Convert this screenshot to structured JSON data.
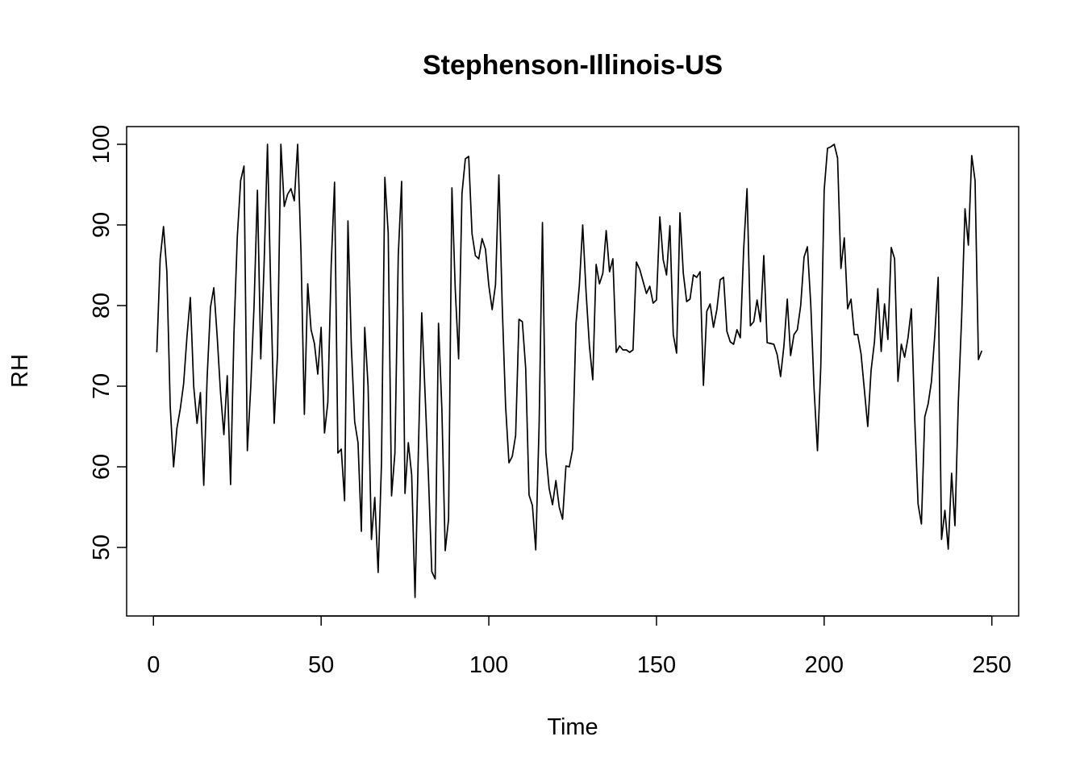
{
  "chart_data": {
    "type": "line",
    "title": "Stephenson-Illinois-US",
    "xlabel": "Time",
    "ylabel": "RH",
    "xlim": [
      -8,
      258
    ],
    "ylim": [
      41.5,
      102.2
    ],
    "x_ticks": [
      0,
      50,
      100,
      150,
      200,
      250
    ],
    "y_ticks": [
      50,
      60,
      70,
      80,
      90,
      100
    ],
    "grid": false,
    "legend": "none",
    "line_color": "#000000",
    "series": [
      {
        "x_start": 1,
        "values": [
          74.2,
          85.8,
          89.8,
          84.2,
          67.5,
          60.0,
          64.8,
          67.2,
          70.3,
          76.2,
          81.0,
          70.0,
          65.4,
          69.2,
          57.7,
          71.0,
          79.8,
          82.2,
          76.2,
          69.2,
          64.0,
          71.3,
          57.8,
          76.5,
          88.5,
          95.5,
          97.3,
          62.0,
          69.8,
          80.0,
          94.3,
          73.4,
          85.2,
          100.0,
          81.5,
          65.4,
          74.0,
          100.0,
          92.3,
          93.8,
          94.5,
          93.0,
          100.0,
          86.5,
          66.5,
          82.7,
          77.0,
          75.3,
          71.5,
          77.3,
          64.2,
          68.0,
          85.0,
          95.3,
          61.7,
          62.2,
          55.8,
          90.5,
          75.0,
          65.6,
          63.0,
          52.0,
          77.3,
          70.0,
          51.0,
          56.2,
          46.9,
          60.5,
          95.9,
          89.0,
          56.4,
          61.7,
          86.2,
          95.4,
          56.7,
          63.0,
          59.0,
          43.8,
          62.0,
          79.1,
          69.0,
          58.8,
          47.0,
          46.1,
          77.8,
          67.2,
          49.6,
          53.5,
          94.6,
          82.0,
          73.4,
          93.9,
          98.2,
          98.5,
          88.9,
          86.2,
          85.8,
          88.3,
          87.0,
          82.5,
          79.5,
          82.6,
          96.2,
          80.0,
          67.6,
          60.5,
          61.3,
          63.9,
          78.3,
          78.0,
          72.2,
          56.5,
          55.2,
          49.7,
          65.2,
          90.3,
          61.8,
          57.3,
          55.3,
          58.3,
          55.0,
          53.5,
          60.1,
          60.0,
          62.2,
          77.8,
          82.5,
          90.0,
          81.7,
          75.0,
          70.8,
          85.1,
          82.7,
          84.0,
          89.3,
          84.2,
          85.8,
          74.2,
          75.0,
          74.5,
          74.5,
          74.2,
          74.5,
          85.4,
          84.5,
          83.0,
          81.5,
          82.4,
          80.3,
          80.7,
          91.0,
          85.7,
          83.8,
          89.9,
          76.4,
          74.1,
          91.5,
          84.0,
          80.5,
          80.8,
          83.8,
          83.5,
          84.2,
          70.1,
          79.3,
          80.2,
          77.3,
          79.5,
          83.2,
          83.5,
          76.8,
          75.5,
          75.2,
          77.0,
          76.0,
          87.0,
          94.5,
          77.5,
          78.0,
          80.7,
          78.0,
          86.2,
          75.4,
          75.3,
          75.2,
          73.9,
          71.2,
          75.0,
          80.8,
          73.8,
          76.4,
          77.0,
          80.0,
          86.0,
          87.3,
          80.2,
          69.6,
          62.0,
          72.5,
          94.3,
          99.5,
          99.7,
          100.0,
          98.3,
          84.6,
          88.4,
          79.6,
          80.8,
          76.4,
          76.4,
          74.0,
          69.5,
          65.0,
          72.0,
          75.5,
          82.1,
          74.3,
          80.2,
          75.8,
          87.2,
          85.8,
          70.6,
          75.2,
          73.6,
          76.0,
          79.6,
          66.0,
          55.4,
          52.9,
          66.2,
          67.8,
          70.6,
          76.4,
          83.5,
          51.0,
          54.6,
          49.8,
          59.2,
          52.7,
          68.0,
          78.6,
          92.0,
          87.5,
          98.6,
          95.5,
          73.3,
          74.4
        ]
      }
    ]
  }
}
